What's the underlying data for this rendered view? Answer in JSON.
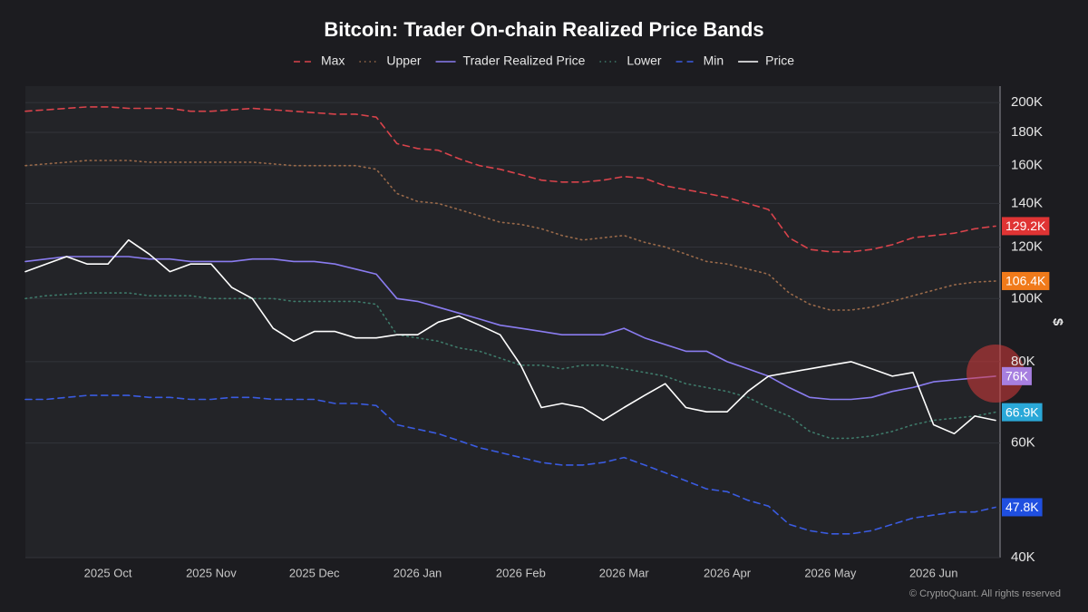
{
  "chart_data": {
    "type": "line",
    "title": "Bitcoin: Trader On-chain Realized Price Bands",
    "y_axis_label": "$",
    "footer": "© CryptoQuant. All rights reserved",
    "log_scale": true,
    "grid": true,
    "legend": "top",
    "categories": [
      null,
      null,
      null,
      null,
      "2025 Oct",
      null,
      null,
      null,
      null,
      "2025 Nov",
      null,
      null,
      null,
      null,
      "2025 Dec",
      null,
      null,
      null,
      null,
      "2026 Jan",
      null,
      null,
      null,
      null,
      "2026 Feb",
      null,
      null,
      null,
      null,
      "2026 Mar",
      null,
      null,
      null,
      null,
      "2026 Apr",
      null,
      null,
      null,
      null,
      "2026 May",
      null,
      null,
      null,
      null,
      "2026 Jun",
      null,
      null,
      null
    ],
    "ylim": [
      40000,
      212000
    ],
    "yticks": [
      {
        "value": 40000,
        "label": "40K"
      },
      {
        "value": 60000,
        "label": "60K"
      },
      {
        "value": 80000,
        "label": "80K"
      },
      {
        "value": 100000,
        "label": "100K"
      },
      {
        "value": 120000,
        "label": "120K"
      },
      {
        "value": 140000,
        "label": "140K"
      },
      {
        "value": 160000,
        "label": "160K"
      },
      {
        "value": 180000,
        "label": "180K"
      },
      {
        "value": 200000,
        "label": "200K"
      }
    ],
    "series": [
      {
        "name": "Max",
        "color": "#d9434b",
        "dash": "dashed",
        "last_label": "129.2K",
        "label_color": "#e03434",
        "values": [
          194000,
          195000,
          196000,
          197000,
          197000,
          196000,
          196000,
          196000,
          194000,
          194000,
          195000,
          196000,
          195000,
          194000,
          193000,
          192000,
          192000,
          190000,
          173000,
          170000,
          169000,
          164000,
          160000,
          158000,
          155000,
          152000,
          151000,
          151000,
          152000,
          154000,
          153000,
          149000,
          147000,
          145000,
          143000,
          140000,
          137000,
          124000,
          119000,
          118000,
          118000,
          119000,
          121000,
          124000,
          125000,
          126000,
          128000,
          129200
        ]
      },
      {
        "name": "Upper",
        "color": "#9a6a4a",
        "dash": "dotted",
        "last_label": "106.4K",
        "label_color": "#f07a1a",
        "values": [
          160000,
          161000,
          162000,
          163000,
          163000,
          163000,
          162000,
          162000,
          162000,
          162000,
          162000,
          162000,
          161000,
          160000,
          160000,
          160000,
          160000,
          158000,
          145000,
          141000,
          140000,
          137000,
          134000,
          131000,
          130000,
          128000,
          125000,
          123000,
          124000,
          125000,
          122000,
          120000,
          117000,
          114000,
          113000,
          111000,
          109000,
          102000,
          98000,
          96000,
          96000,
          97000,
          99000,
          101000,
          103000,
          105000,
          106000,
          106400
        ]
      },
      {
        "name": "Trader Realized Price",
        "color": "#8a7cf0",
        "dash": "solid",
        "last_label": "76K",
        "label_color": "#a77fe0",
        "values": [
          114000,
          115000,
          116000,
          116000,
          116000,
          116000,
          115000,
          115000,
          114000,
          114000,
          114000,
          115000,
          115000,
          114000,
          114000,
          113000,
          111000,
          109000,
          100000,
          99000,
          97000,
          95000,
          93000,
          91000,
          90000,
          89000,
          88000,
          88000,
          88000,
          90000,
          87000,
          85000,
          83000,
          83000,
          80000,
          78000,
          76000,
          73000,
          70500,
          70000,
          70000,
          70500,
          72000,
          73000,
          74500,
          75000,
          75500,
          76000
        ]
      },
      {
        "name": "Lower",
        "color": "#3e7a6a",
        "dash": "dotted",
        "last_label": "66.9K",
        "label_color": "#2aa8d8",
        "values": [
          100000,
          101000,
          101500,
          102000,
          102000,
          102000,
          101000,
          101000,
          101000,
          100000,
          100000,
          100000,
          100000,
          99000,
          99000,
          99000,
          99000,
          98000,
          88000,
          87000,
          86000,
          84000,
          83000,
          81000,
          79000,
          79000,
          78000,
          79000,
          79000,
          78000,
          77000,
          76000,
          74000,
          73000,
          72000,
          70500,
          68000,
          66000,
          62500,
          61000,
          61000,
          61500,
          62500,
          64000,
          65000,
          65500,
          66000,
          66900
        ]
      },
      {
        "name": "Min",
        "color": "#3a5be0",
        "dash": "dashed",
        "last_label": "47.8K",
        "label_color": "#1f4fe0",
        "values": [
          70000,
          70000,
          70500,
          71000,
          71000,
          71000,
          70500,
          70500,
          70000,
          70000,
          70500,
          70500,
          70000,
          70000,
          70000,
          69000,
          69000,
          68500,
          64000,
          63000,
          62000,
          60500,
          59000,
          58000,
          57000,
          56000,
          55500,
          55500,
          56000,
          57000,
          55500,
          54000,
          52500,
          51000,
          50500,
          49000,
          48000,
          45000,
          44000,
          43500,
          43500,
          44000,
          45000,
          46000,
          46500,
          47000,
          47000,
          47800
        ]
      },
      {
        "name": "Price",
        "color": "#ffffff",
        "dash": "solid",
        "values": [
          110000,
          113000,
          116000,
          113000,
          113000,
          123000,
          117000,
          110000,
          113000,
          113000,
          104000,
          100000,
          90000,
          86000,
          89000,
          89000,
          87000,
          87000,
          88000,
          88000,
          92000,
          94000,
          91000,
          88000,
          79000,
          68000,
          69000,
          68000,
          65000,
          68000,
          71000,
          74000,
          68000,
          67000,
          67000,
          72000,
          76000,
          77000,
          78000,
          79000,
          80000,
          78000,
          76000,
          77000,
          64000,
          62000,
          66000,
          65000
        ]
      }
    ]
  }
}
